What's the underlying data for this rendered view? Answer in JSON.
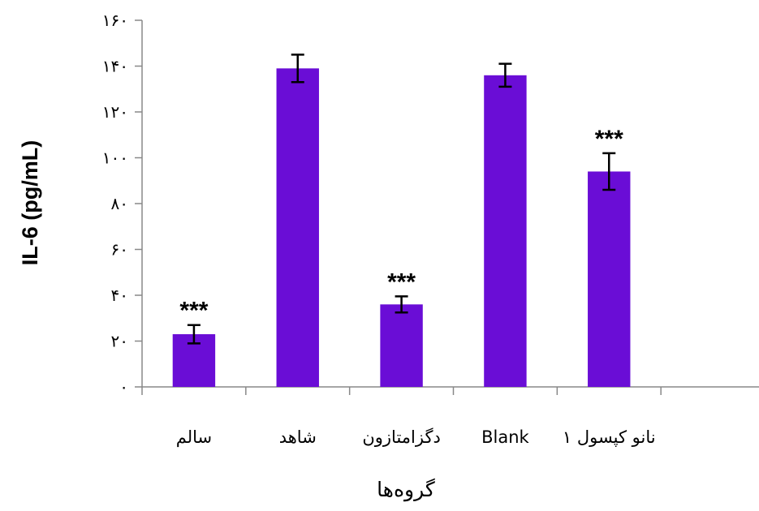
{
  "chart_data": {
    "type": "bar",
    "title": "",
    "xlabel": "گروه‌ها",
    "ylabel": "IL-6 (pg/mL)",
    "ylim": [
      0,
      160
    ],
    "yticks": [
      0,
      20,
      40,
      60,
      80,
      100,
      120,
      140,
      160
    ],
    "ytick_labels": [
      "۰",
      "۲۰",
      "۴۰",
      "۶۰",
      "۸۰",
      "۱۰۰",
      "۱۲۰",
      "۱۴۰",
      "۱۶۰"
    ],
    "categories": [
      "سالم",
      "شاهد",
      "دگزامتازون",
      "Blank",
      "نانو کپسول ۱"
    ],
    "values": [
      23,
      139,
      36,
      136,
      94
    ],
    "errors": [
      4,
      6,
      3.5,
      5,
      8
    ],
    "significance": [
      "***",
      "",
      "***",
      "",
      "***"
    ],
    "bar_color": "#6A0DD6",
    "grid": false,
    "legend": "none"
  }
}
